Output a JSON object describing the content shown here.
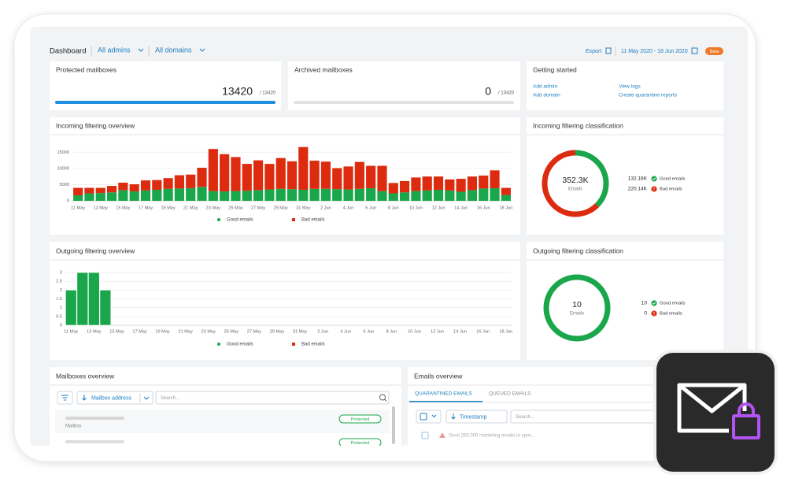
{
  "header": {
    "title": "Dashboard",
    "admins": "All admins",
    "domains": "All domains",
    "export": "Export",
    "date_range": "11 May 2020 - 18 Jun 2020",
    "badge": "Beta"
  },
  "protected_mailboxes": {
    "title": "Protected mailboxes",
    "value": 13420,
    "total": {
      "value": 13420,
      "label": "/ 13420"
    }
  },
  "archived_mailboxes": {
    "title": "Archived mailboxes",
    "value": 0,
    "total": {
      "value": 13420,
      "label": "/ 13420"
    }
  },
  "getting_started": {
    "title": "Getting started",
    "links": [
      "Add admin",
      "Add domain",
      "View logs",
      "Create quarantine reports"
    ]
  },
  "chart_data": [
    {
      "type": "bar",
      "stacked": true,
      "title": "Incoming filtering overview",
      "categories": [
        "11 May",
        null,
        "13 May",
        null,
        "15 May",
        null,
        "17 May",
        null,
        "19 May",
        null,
        "21 May",
        null,
        "23 May",
        null,
        "25 May",
        null,
        "27 May",
        null,
        "29 May",
        null,
        "31 May",
        null,
        "2 Jun",
        null,
        "4 Jun",
        null,
        "6 Jun",
        null,
        "8 Jun",
        null,
        "10 Jun",
        null,
        "12 Jun",
        null,
        "14 Jun",
        null,
        "16 Jun",
        null,
        "18 Jun"
      ],
      "series": [
        {
          "name": "Good emails",
          "color": "#1aa64a",
          "values": [
            1700,
            2300,
            2400,
            2600,
            3300,
            2900,
            3200,
            3400,
            3700,
            3800,
            3900,
            4300,
            3000,
            2900,
            3000,
            3100,
            3300,
            3500,
            3700,
            3600,
            3400,
            3700,
            3700,
            3600,
            3500,
            3700,
            3900,
            3000,
            2300,
            2600,
            3000,
            3200,
            3400,
            3200,
            2800,
            3300,
            3800,
            3900,
            1800
          ]
        },
        {
          "name": "Bad emails",
          "color": "#dc2b0e",
          "values": [
            2300,
            1700,
            1600,
            2000,
            2300,
            2200,
            3100,
            3000,
            3300,
            4100,
            4200,
            5900,
            13000,
            11500,
            10500,
            8300,
            9200,
            7900,
            9500,
            8600,
            13200,
            8700,
            8400,
            6500,
            7100,
            8300,
            6900,
            7800,
            3200,
            3500,
            4200,
            4300,
            4100,
            3400,
            4000,
            4200,
            4000,
            5500,
            2200
          ]
        }
      ],
      "ylim": [
        0,
        17500
      ],
      "yticks": [
        0,
        5000,
        10000,
        15000
      ],
      "grid": true,
      "legend": "bottom"
    },
    {
      "type": "donut",
      "title": "Incoming filtering classification",
      "labels": [
        "Good emails",
        "Bad emails"
      ],
      "colors": [
        "#1aa64a",
        "#dc2b0e"
      ],
      "values": [
        132160,
        220140
      ],
      "value_labels": [
        "132.16K",
        "220.14K"
      ],
      "total": {
        "value": 352300,
        "label": "352.3K"
      },
      "center_label": "Emails"
    },
    {
      "type": "bar",
      "stacked": true,
      "title": "Outgoing filtering overview",
      "categories": [
        "11 May",
        null,
        "13 May",
        null,
        "15 May",
        null,
        "17 May",
        null,
        "19 May",
        null,
        "21 May",
        null,
        "23 May",
        null,
        "25 May",
        null,
        "27 May",
        null,
        "29 May",
        null,
        "31 May",
        null,
        "2 Jun",
        null,
        "4 Jun",
        null,
        "6 Jun",
        null,
        "8 Jun",
        null,
        "10 Jun",
        null,
        "12 Jun",
        null,
        "14 Jun",
        null,
        "16 Jun",
        null,
        "18 Jun"
      ],
      "series": [
        {
          "name": "Good emails",
          "color": "#1aa64a",
          "values": [
            2,
            3,
            3,
            2,
            0,
            0,
            0,
            0,
            0,
            0,
            0,
            0,
            0,
            0,
            0,
            0,
            0,
            0,
            0,
            0,
            0,
            0,
            0,
            0,
            0,
            0,
            0,
            0,
            0,
            0,
            0,
            0,
            0,
            0,
            0,
            0,
            0,
            0,
            0
          ]
        },
        {
          "name": "Bad emails",
          "color": "#dc2b0e",
          "values": [
            0,
            0,
            0,
            0,
            0,
            0,
            0,
            0,
            0,
            0,
            0,
            0,
            0,
            0,
            0,
            0,
            0,
            0,
            0,
            0,
            0,
            0,
            0,
            0,
            0,
            0,
            0,
            0,
            0,
            0,
            0,
            0,
            0,
            0,
            0,
            0,
            0,
            0,
            0
          ]
        }
      ],
      "ylim": [
        0,
        3.2
      ],
      "yticks": [
        0,
        0.5,
        1,
        1.5,
        2,
        2.5,
        3
      ],
      "grid": true,
      "legend": "bottom"
    },
    {
      "type": "donut",
      "title": "Outgoing filtering classification",
      "labels": [
        "Good emails",
        "Bad emails"
      ],
      "colors": [
        "#1aa64a",
        "#dc2b0e"
      ],
      "values": [
        10,
        0
      ],
      "total": 10,
      "center_label": "Emails"
    }
  ],
  "mailboxes_overview": {
    "title": "Mailboxes overview",
    "sort_label": "Mailbox address",
    "search_placeholder": "Search...",
    "rows": [
      {
        "type": "Mailbox",
        "status": "Protected"
      },
      {
        "status": "Protected"
      }
    ]
  },
  "emails_overview": {
    "title": "Emails overview",
    "tabs": [
      "QUARANTINED EMAILS",
      "QUEUED EMAILS"
    ],
    "sort_label": "Timestamp",
    "search_placeholder": "Search...",
    "rows": [
      {
        "subject": "Send 250,000 marketing emails to spre..."
      }
    ]
  }
}
